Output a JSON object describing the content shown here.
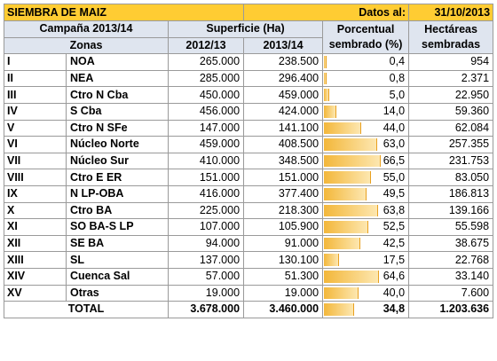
{
  "title": "SIEMBRA DE MAIZ",
  "date_label": "Datos al:",
  "date_value": "31/10/2013",
  "headers": {
    "campaign": "Campaña 2013/14",
    "surface": "Superficie (Ha)",
    "percent_line1": "Porcentual",
    "percent_line2": "sembrado (%)",
    "hectares_line1": "Hectáreas",
    "hectares_line2": "sembradas",
    "zones": "Zonas",
    "year1": "2012/13",
    "year2": "2013/14"
  },
  "rows": [
    {
      "num": "I",
      "zone": "NOA",
      "s2012": "265.000",
      "s2013": "238.500",
      "pct": "0,4",
      "pct_value": 0.4,
      "ha": "954"
    },
    {
      "num": "II",
      "zone": "NEA",
      "s2012": "285.000",
      "s2013": "296.400",
      "pct": "0,8",
      "pct_value": 0.8,
      "ha": "2.371"
    },
    {
      "num": "III",
      "zone": "Ctro N Cba",
      "s2012": "450.000",
      "s2013": "459.000",
      "pct": "5,0",
      "pct_value": 5.0,
      "ha": "22.950"
    },
    {
      "num": "IV",
      "zone": "S Cba",
      "s2012": "456.000",
      "s2013": "424.000",
      "pct": "14,0",
      "pct_value": 14.0,
      "ha": "59.360"
    },
    {
      "num": "V",
      "zone": "Ctro N SFe",
      "s2012": "147.000",
      "s2013": "141.100",
      "pct": "44,0",
      "pct_value": 44.0,
      "ha": "62.084"
    },
    {
      "num": "VI",
      "zone": "Núcleo Norte",
      "s2012": "459.000",
      "s2013": "408.500",
      "pct": "63,0",
      "pct_value": 63.0,
      "ha": "257.355"
    },
    {
      "num": "VII",
      "zone": "Núcleo Sur",
      "s2012": "410.000",
      "s2013": "348.500",
      "pct": "66,5",
      "pct_value": 66.5,
      "ha": "231.753"
    },
    {
      "num": "VIII",
      "zone": "Ctro E ER",
      "s2012": "151.000",
      "s2013": "151.000",
      "pct": "55,0",
      "pct_value": 55.0,
      "ha": "83.050"
    },
    {
      "num": "IX",
      "zone": "N LP-OBA",
      "s2012": "416.000",
      "s2013": "377.400",
      "pct": "49,5",
      "pct_value": 49.5,
      "ha": "186.813"
    },
    {
      "num": "X",
      "zone": "Ctro BA",
      "s2012": "225.000",
      "s2013": "218.300",
      "pct": "63,8",
      "pct_value": 63.8,
      "ha": "139.166"
    },
    {
      "num": "XI",
      "zone": "SO BA-S LP",
      "s2012": "107.000",
      "s2013": "105.900",
      "pct": "52,5",
      "pct_value": 52.5,
      "ha": "55.598"
    },
    {
      "num": "XII",
      "zone": "SE BA",
      "s2012": "94.000",
      "s2013": "91.000",
      "pct": "42,5",
      "pct_value": 42.5,
      "ha": "38.675"
    },
    {
      "num": "XIII",
      "zone": "SL",
      "s2012": "137.000",
      "s2013": "130.100",
      "pct": "17,5",
      "pct_value": 17.5,
      "ha": "22.768"
    },
    {
      "num": "XIV",
      "zone": "Cuenca Sal",
      "s2012": "57.000",
      "s2013": "51.300",
      "pct": "64,6",
      "pct_value": 64.6,
      "ha": "33.140"
    },
    {
      "num": "XV",
      "zone": "Otras",
      "s2012": "19.000",
      "s2013": "19.000",
      "pct": "40,0",
      "pct_value": 40.0,
      "ha": "7.600"
    }
  ],
  "total": {
    "label": "TOTAL",
    "s2012": "3.678.000",
    "s2013": "3.460.000",
    "pct": "34,8",
    "pct_value": 34.8,
    "ha": "1.203.636"
  },
  "colors": {
    "title_bg": "#ffcc33",
    "header_bg": "#dfe5ef",
    "bar_start": "#f3b73a",
    "bar_end": "#fde7b0"
  }
}
